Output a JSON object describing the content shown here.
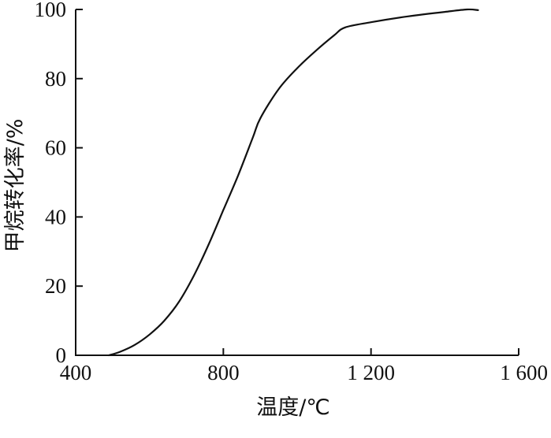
{
  "chart_data": {
    "type": "line",
    "title": "",
    "xlabel": "温度/℃",
    "ylabel": "甲烷转化率/%",
    "xlim": [
      400,
      1600
    ],
    "ylim": [
      0,
      100
    ],
    "x_ticks": [
      400,
      800,
      1200,
      1600
    ],
    "x_tick_labels": [
      "400",
      "800",
      "1 200",
      "1 600"
    ],
    "y_ticks": [
      0,
      20,
      40,
      60,
      80,
      100
    ],
    "y_tick_labels": [
      "0",
      "20",
      "40",
      "60",
      "80",
      "100"
    ],
    "grid": false,
    "legend": "none",
    "colors": {
      "line": "#111111",
      "axis": "#111111"
    },
    "series": [
      {
        "values": [
          [
            490,
            0
          ],
          [
            520,
            1
          ],
          [
            560,
            3
          ],
          [
            600,
            6
          ],
          [
            640,
            10
          ],
          [
            680,
            15.5
          ],
          [
            720,
            23
          ],
          [
            760,
            32
          ],
          [
            800,
            42
          ],
          [
            840,
            52
          ],
          [
            880,
            63
          ],
          [
            900,
            68.5
          ],
          [
            950,
            77
          ],
          [
            1000,
            83
          ],
          [
            1050,
            88
          ],
          [
            1100,
            92.5
          ],
          [
            1130,
            94.8
          ],
          [
            1200,
            96.3
          ],
          [
            1300,
            98
          ],
          [
            1400,
            99.3
          ],
          [
            1460,
            100
          ],
          [
            1490,
            99.8
          ]
        ]
      }
    ]
  }
}
